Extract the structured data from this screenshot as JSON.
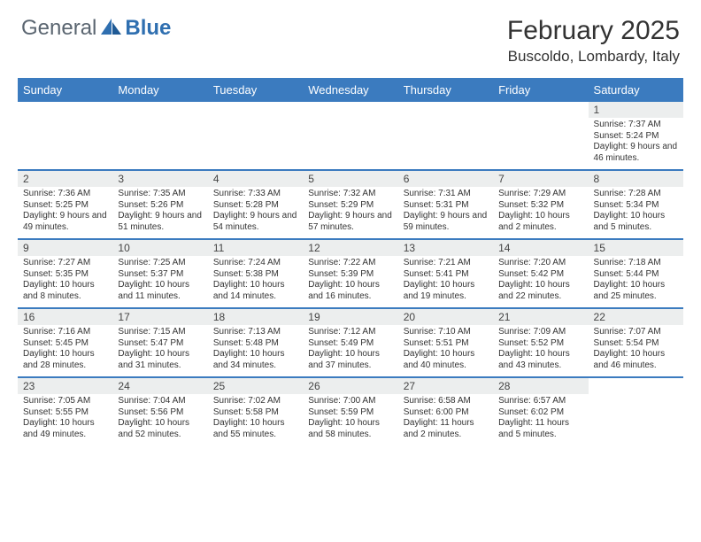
{
  "brand": {
    "text1": "General",
    "text2": "Blue"
  },
  "title": "February 2025",
  "location": "Buscoldo, Lombardy, Italy",
  "colors": {
    "header_bg": "#3b7bbf",
    "header_text": "#ffffff",
    "daynum_bg": "#eceeee",
    "border": "#3b7bbf",
    "logo_gray": "#5a6570",
    "logo_blue": "#2f6fb0"
  },
  "fonts": {
    "title_size": 30,
    "location_size": 17,
    "dayhead_size": 13,
    "daynum_size": 12,
    "content_size": 10
  },
  "day_headers": [
    "Sunday",
    "Monday",
    "Tuesday",
    "Wednesday",
    "Thursday",
    "Friday",
    "Saturday"
  ],
  "weeks": [
    [
      {
        "n": "",
        "sunrise": "",
        "sunset": "",
        "daylight": ""
      },
      {
        "n": "",
        "sunrise": "",
        "sunset": "",
        "daylight": ""
      },
      {
        "n": "",
        "sunrise": "",
        "sunset": "",
        "daylight": ""
      },
      {
        "n": "",
        "sunrise": "",
        "sunset": "",
        "daylight": ""
      },
      {
        "n": "",
        "sunrise": "",
        "sunset": "",
        "daylight": ""
      },
      {
        "n": "",
        "sunrise": "",
        "sunset": "",
        "daylight": ""
      },
      {
        "n": "1",
        "sunrise": "Sunrise: 7:37 AM",
        "sunset": "Sunset: 5:24 PM",
        "daylight": "Daylight: 9 hours and 46 minutes."
      }
    ],
    [
      {
        "n": "2",
        "sunrise": "Sunrise: 7:36 AM",
        "sunset": "Sunset: 5:25 PM",
        "daylight": "Daylight: 9 hours and 49 minutes."
      },
      {
        "n": "3",
        "sunrise": "Sunrise: 7:35 AM",
        "sunset": "Sunset: 5:26 PM",
        "daylight": "Daylight: 9 hours and 51 minutes."
      },
      {
        "n": "4",
        "sunrise": "Sunrise: 7:33 AM",
        "sunset": "Sunset: 5:28 PM",
        "daylight": "Daylight: 9 hours and 54 minutes."
      },
      {
        "n": "5",
        "sunrise": "Sunrise: 7:32 AM",
        "sunset": "Sunset: 5:29 PM",
        "daylight": "Daylight: 9 hours and 57 minutes."
      },
      {
        "n": "6",
        "sunrise": "Sunrise: 7:31 AM",
        "sunset": "Sunset: 5:31 PM",
        "daylight": "Daylight: 9 hours and 59 minutes."
      },
      {
        "n": "7",
        "sunrise": "Sunrise: 7:29 AM",
        "sunset": "Sunset: 5:32 PM",
        "daylight": "Daylight: 10 hours and 2 minutes."
      },
      {
        "n": "8",
        "sunrise": "Sunrise: 7:28 AM",
        "sunset": "Sunset: 5:34 PM",
        "daylight": "Daylight: 10 hours and 5 minutes."
      }
    ],
    [
      {
        "n": "9",
        "sunrise": "Sunrise: 7:27 AM",
        "sunset": "Sunset: 5:35 PM",
        "daylight": "Daylight: 10 hours and 8 minutes."
      },
      {
        "n": "10",
        "sunrise": "Sunrise: 7:25 AM",
        "sunset": "Sunset: 5:37 PM",
        "daylight": "Daylight: 10 hours and 11 minutes."
      },
      {
        "n": "11",
        "sunrise": "Sunrise: 7:24 AM",
        "sunset": "Sunset: 5:38 PM",
        "daylight": "Daylight: 10 hours and 14 minutes."
      },
      {
        "n": "12",
        "sunrise": "Sunrise: 7:22 AM",
        "sunset": "Sunset: 5:39 PM",
        "daylight": "Daylight: 10 hours and 16 minutes."
      },
      {
        "n": "13",
        "sunrise": "Sunrise: 7:21 AM",
        "sunset": "Sunset: 5:41 PM",
        "daylight": "Daylight: 10 hours and 19 minutes."
      },
      {
        "n": "14",
        "sunrise": "Sunrise: 7:20 AM",
        "sunset": "Sunset: 5:42 PM",
        "daylight": "Daylight: 10 hours and 22 minutes."
      },
      {
        "n": "15",
        "sunrise": "Sunrise: 7:18 AM",
        "sunset": "Sunset: 5:44 PM",
        "daylight": "Daylight: 10 hours and 25 minutes."
      }
    ],
    [
      {
        "n": "16",
        "sunrise": "Sunrise: 7:16 AM",
        "sunset": "Sunset: 5:45 PM",
        "daylight": "Daylight: 10 hours and 28 minutes."
      },
      {
        "n": "17",
        "sunrise": "Sunrise: 7:15 AM",
        "sunset": "Sunset: 5:47 PM",
        "daylight": "Daylight: 10 hours and 31 minutes."
      },
      {
        "n": "18",
        "sunrise": "Sunrise: 7:13 AM",
        "sunset": "Sunset: 5:48 PM",
        "daylight": "Daylight: 10 hours and 34 minutes."
      },
      {
        "n": "19",
        "sunrise": "Sunrise: 7:12 AM",
        "sunset": "Sunset: 5:49 PM",
        "daylight": "Daylight: 10 hours and 37 minutes."
      },
      {
        "n": "20",
        "sunrise": "Sunrise: 7:10 AM",
        "sunset": "Sunset: 5:51 PM",
        "daylight": "Daylight: 10 hours and 40 minutes."
      },
      {
        "n": "21",
        "sunrise": "Sunrise: 7:09 AM",
        "sunset": "Sunset: 5:52 PM",
        "daylight": "Daylight: 10 hours and 43 minutes."
      },
      {
        "n": "22",
        "sunrise": "Sunrise: 7:07 AM",
        "sunset": "Sunset: 5:54 PM",
        "daylight": "Daylight: 10 hours and 46 minutes."
      }
    ],
    [
      {
        "n": "23",
        "sunrise": "Sunrise: 7:05 AM",
        "sunset": "Sunset: 5:55 PM",
        "daylight": "Daylight: 10 hours and 49 minutes."
      },
      {
        "n": "24",
        "sunrise": "Sunrise: 7:04 AM",
        "sunset": "Sunset: 5:56 PM",
        "daylight": "Daylight: 10 hours and 52 minutes."
      },
      {
        "n": "25",
        "sunrise": "Sunrise: 7:02 AM",
        "sunset": "Sunset: 5:58 PM",
        "daylight": "Daylight: 10 hours and 55 minutes."
      },
      {
        "n": "26",
        "sunrise": "Sunrise: 7:00 AM",
        "sunset": "Sunset: 5:59 PM",
        "daylight": "Daylight: 10 hours and 58 minutes."
      },
      {
        "n": "27",
        "sunrise": "Sunrise: 6:58 AM",
        "sunset": "Sunset: 6:00 PM",
        "daylight": "Daylight: 11 hours and 2 minutes."
      },
      {
        "n": "28",
        "sunrise": "Sunrise: 6:57 AM",
        "sunset": "Sunset: 6:02 PM",
        "daylight": "Daylight: 11 hours and 5 minutes."
      },
      {
        "n": "",
        "sunrise": "",
        "sunset": "",
        "daylight": ""
      }
    ]
  ]
}
